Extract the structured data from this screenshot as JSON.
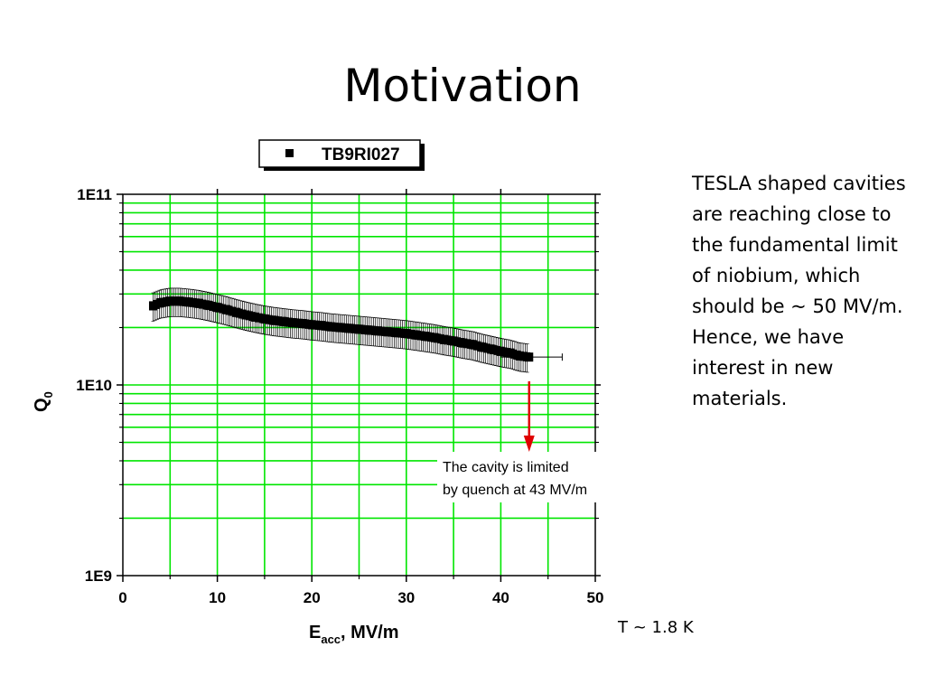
{
  "slide": {
    "title": "Motivation",
    "side_note": "TESLA shaped cavities are reaching close to the fundamental limit of niobium, which should be ~ 50 MV/m. Hence, we have interest in new materials.",
    "temperature_note": "T ~ 1.8 K"
  },
  "colors": {
    "grid": "#00e600",
    "data": "#000000",
    "arrow": "#e00000",
    "frame": "#000000"
  },
  "chart_data": {
    "type": "scatter",
    "x_scale": "linear",
    "y_scale": "log",
    "xlim": [
      0,
      50
    ],
    "ylim": [
      1000000000.0,
      100000000000.0
    ],
    "grid": true,
    "x_ticks": [
      0,
      10,
      20,
      30,
      40,
      50
    ],
    "x_tick_labels": [
      "0",
      "10",
      "20",
      "30",
      "40",
      "50"
    ],
    "y_ticks": [
      1000000000.0,
      10000000000.0,
      100000000000.0
    ],
    "y_tick_labels": [
      "1E9",
      "1E10",
      "1E11"
    ],
    "xlabel_main": "E",
    "xlabel_sub": "acc",
    "xlabel_rest": ", MV/m",
    "ylabel_main": "Q",
    "ylabel_sub": "0",
    "legend_placement": "top-center",
    "series": [
      {
        "name": "TB9RI027",
        "marker": "square",
        "x": [
          3.2,
          4,
          5,
          6,
          7,
          8,
          9,
          10,
          11,
          12,
          13,
          14,
          15,
          16,
          17,
          18,
          19,
          20,
          21,
          22,
          23,
          24,
          25,
          26,
          27,
          28,
          29,
          30,
          31,
          32,
          33,
          34,
          35,
          36,
          37,
          38,
          39,
          40,
          41,
          42,
          43
        ],
        "y": [
          26000000000.0,
          27000000000.0,
          27500000000.0,
          27500000000.0,
          27200000000.0,
          26800000000.0,
          26200000000.0,
          25500000000.0,
          24800000000.0,
          24000000000.0,
          23300000000.0,
          22700000000.0,
          22200000000.0,
          21800000000.0,
          21500000000.0,
          21200000000.0,
          21000000000.0,
          20700000000.0,
          20500000000.0,
          20200000000.0,
          20000000000.0,
          19800000000.0,
          19600000000.0,
          19400000000.0,
          19200000000.0,
          19000000000.0,
          18800000000.0,
          18600000000.0,
          18300000000.0,
          18000000000.0,
          17700000000.0,
          17300000000.0,
          17000000000.0,
          16600000000.0,
          16300000000.0,
          15800000000.0,
          15400000000.0,
          15000000000.0,
          14700000000.0,
          14200000000.0,
          14000000000.0
        ],
        "rel_error": 0.17
      }
    ],
    "annotations": [
      {
        "text_line1": "The cavity is limited",
        "text_line2": "by quench at 43 MV/m",
        "arrow_x": 43
      }
    ]
  }
}
